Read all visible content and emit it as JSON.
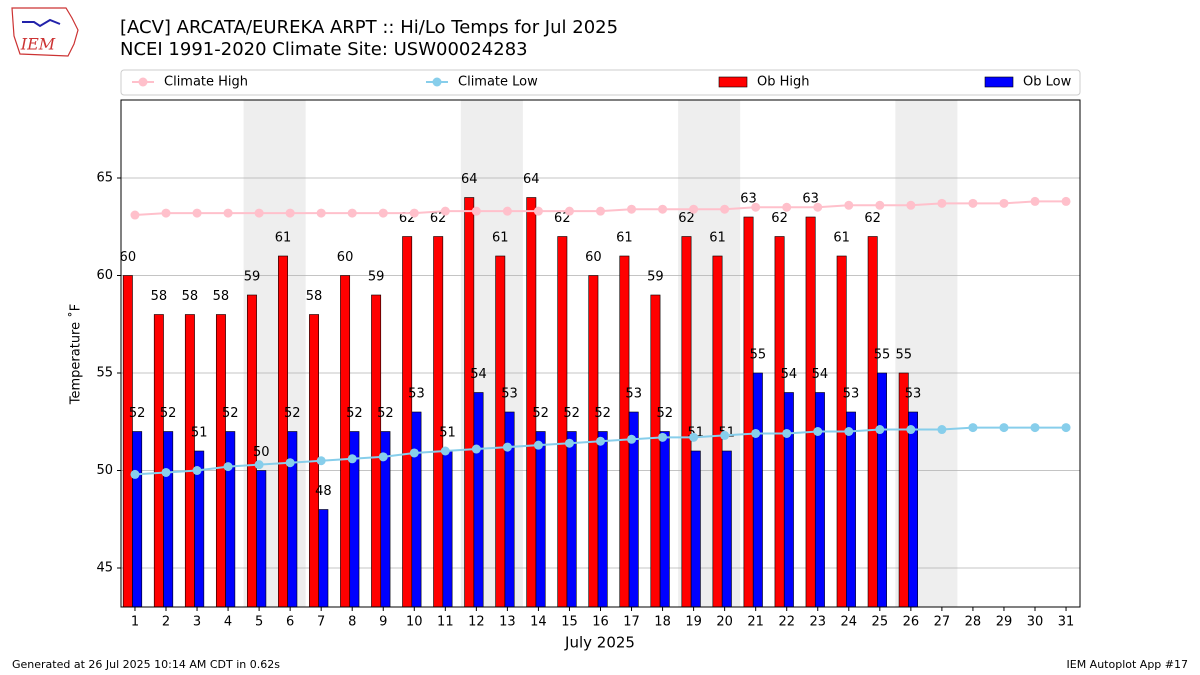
{
  "chart_data": {
    "type": "bar",
    "title": "[ACV] ARCATA/EUREKA ARPT :: Hi/Lo Temps for Jul 2025",
    "subtitle": "NCEI 1991-2020 Climate Site: USW00024283",
    "x_label": "July 2025",
    "y_label": "Temperature ˚F",
    "logo_text": "IEM",
    "footer_left": "Generated at 26 Jul 2025 10:14 AM CDT in 0.62s",
    "footer_right": "IEM Autoplot App #17",
    "x": [
      1,
      2,
      3,
      4,
      5,
      6,
      7,
      8,
      9,
      10,
      11,
      12,
      13,
      14,
      15,
      16,
      17,
      18,
      19,
      20,
      21,
      22,
      23,
      24,
      25,
      26,
      27,
      28,
      29,
      30,
      31
    ],
    "xlim": [
      0.55,
      31.45
    ],
    "xticks": [
      1,
      2,
      3,
      4,
      5,
      6,
      7,
      8,
      9,
      10,
      11,
      12,
      13,
      14,
      15,
      16,
      17,
      18,
      19,
      20,
      21,
      22,
      23,
      24,
      25,
      26,
      27,
      28,
      29,
      30,
      31
    ],
    "ylim": [
      43,
      69
    ],
    "yticks": [
      45,
      50,
      55,
      60,
      65
    ],
    "grid": true,
    "shaded_ranges": [
      [
        4.5,
        6.5
      ],
      [
        11.5,
        13.5
      ],
      [
        18.5,
        20.5
      ],
      [
        25.5,
        27.5
      ]
    ],
    "series": [
      {
        "name": "Climate High",
        "type": "line",
        "color": "#ffc0cb",
        "values": [
          63.1,
          63.2,
          63.2,
          63.2,
          63.2,
          63.2,
          63.2,
          63.2,
          63.2,
          63.2,
          63.3,
          63.3,
          63.3,
          63.3,
          63.3,
          63.3,
          63.4,
          63.4,
          63.4,
          63.4,
          63.5,
          63.5,
          63.5,
          63.6,
          63.6,
          63.6,
          63.7,
          63.7,
          63.7,
          63.8,
          63.8
        ]
      },
      {
        "name": "Climate Low",
        "type": "line",
        "color": "#87ceeb",
        "values": [
          49.8,
          49.9,
          50.0,
          50.2,
          50.3,
          50.4,
          50.5,
          50.6,
          50.7,
          50.9,
          51.0,
          51.1,
          51.2,
          51.3,
          51.4,
          51.5,
          51.6,
          51.7,
          51.7,
          51.8,
          51.9,
          51.9,
          52.0,
          52.0,
          52.1,
          52.1,
          52.1,
          52.2,
          52.2,
          52.2,
          52.2
        ]
      },
      {
        "name": "Ob High",
        "type": "bar",
        "color": "#ff0000",
        "values": [
          60,
          58,
          58,
          58,
          59,
          61,
          58,
          60,
          59,
          62,
          62,
          64,
          61,
          64,
          62,
          60,
          61,
          59,
          62,
          61,
          63,
          62,
          63,
          61,
          62,
          55,
          null,
          null,
          null,
          null,
          null
        ]
      },
      {
        "name": "Ob Low",
        "type": "bar",
        "color": "#0000ff",
        "values": [
          52,
          52,
          51,
          52,
          50,
          52,
          48,
          52,
          52,
          53,
          51,
          54,
          53,
          52,
          52,
          52,
          53,
          52,
          51,
          51,
          55,
          54,
          54,
          53,
          55,
          53,
          null,
          null,
          null,
          null,
          null
        ]
      }
    ]
  }
}
